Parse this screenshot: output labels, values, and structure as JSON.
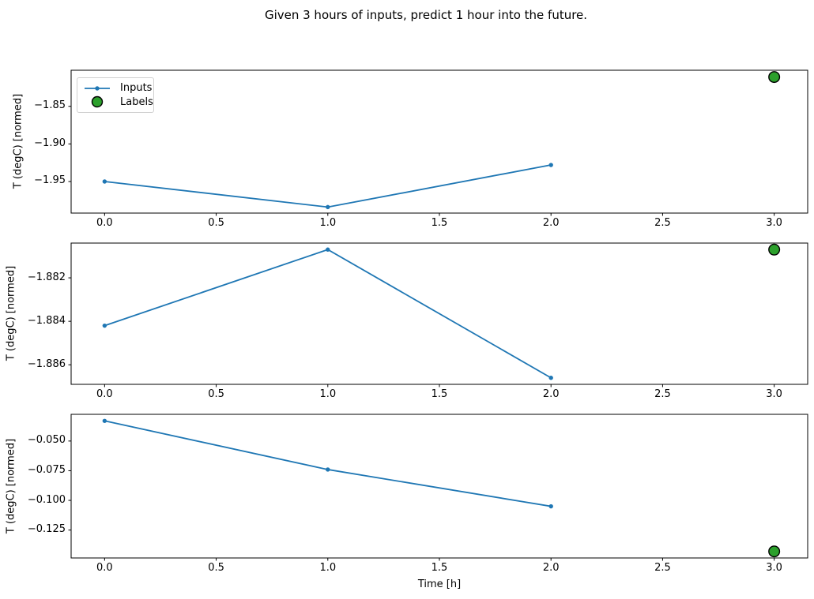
{
  "title": "Given 3 hours of inputs, predict 1 hour into the future.",
  "colors": {
    "inputs_line": "#1f77b4",
    "labels_fill": "#2ca02c",
    "labels_edge": "#000000",
    "axis": "#000000",
    "text": "#000000",
    "background": "#ffffff",
    "legend_border": "#d0d0d0"
  },
  "legend": {
    "position": "upper-left-of-first-subplot",
    "items": [
      {
        "label": "Inputs",
        "marker": "line-with-dot"
      },
      {
        "label": "Labels",
        "marker": "filled-circle"
      }
    ]
  },
  "chart_data": [
    {
      "type": "line",
      "subplot": 1,
      "ylabel": "T (degC) [normed]",
      "xlabel": "",
      "grid": false,
      "xlim": [
        -0.15,
        3.15
      ],
      "ylim": [
        -1.992,
        -1.802
      ],
      "xticks": [
        0.0,
        0.5,
        1.0,
        1.5,
        2.0,
        2.5,
        3.0
      ],
      "xtick_labels": [
        "0.0",
        "0.5",
        "1.0",
        "1.5",
        "2.0",
        "2.5",
        "3.0"
      ],
      "yticks": [
        -1.85,
        -1.9,
        -1.95
      ],
      "ytick_labels": [
        "−1.85",
        "−1.90",
        "−1.95"
      ],
      "series": [
        {
          "name": "Inputs",
          "style": "line+marker",
          "x": [
            0,
            1,
            2
          ],
          "y": [
            -1.95,
            -1.984,
            -1.928
          ]
        },
        {
          "name": "Labels",
          "style": "scatter",
          "x": [
            3
          ],
          "y": [
            -1.811
          ]
        }
      ]
    },
    {
      "type": "line",
      "subplot": 2,
      "ylabel": "T (degC) [normed]",
      "xlabel": "",
      "grid": false,
      "xlim": [
        -0.15,
        3.15
      ],
      "ylim": [
        -1.8869,
        -1.8804
      ],
      "xticks": [
        0.0,
        0.5,
        1.0,
        1.5,
        2.0,
        2.5,
        3.0
      ],
      "xtick_labels": [
        "0.0",
        "0.5",
        "1.0",
        "1.5",
        "2.0",
        "2.5",
        "3.0"
      ],
      "yticks": [
        -1.882,
        -1.884,
        -1.886
      ],
      "ytick_labels": [
        "−1.882",
        "−1.884",
        "−1.886"
      ],
      "series": [
        {
          "name": "Inputs",
          "style": "line+marker",
          "x": [
            0,
            1,
            2
          ],
          "y": [
            -1.8842,
            -1.8807,
            -1.8866
          ]
        },
        {
          "name": "Labels",
          "style": "scatter",
          "x": [
            3
          ],
          "y": [
            -1.8807
          ]
        }
      ]
    },
    {
      "type": "line",
      "subplot": 3,
      "ylabel": "T (degC) [normed]",
      "xlabel": "Time [h]",
      "grid": false,
      "xlim": [
        -0.15,
        3.15
      ],
      "ylim": [
        -0.1485,
        -0.0275
      ],
      "xticks": [
        0.0,
        0.5,
        1.0,
        1.5,
        2.0,
        2.5,
        3.0
      ],
      "xtick_labels": [
        "0.0",
        "0.5",
        "1.0",
        "1.5",
        "2.0",
        "2.5",
        "3.0"
      ],
      "yticks": [
        -0.05,
        -0.075,
        -0.1,
        -0.125
      ],
      "ytick_labels": [
        "−0.050",
        "−0.075",
        "−0.100",
        "−0.125"
      ],
      "series": [
        {
          "name": "Inputs",
          "style": "line+marker",
          "x": [
            0,
            1,
            2
          ],
          "y": [
            -0.033,
            -0.074,
            -0.105
          ]
        },
        {
          "name": "Labels",
          "style": "scatter",
          "x": [
            3
          ],
          "y": [
            -0.143
          ]
        }
      ]
    }
  ]
}
